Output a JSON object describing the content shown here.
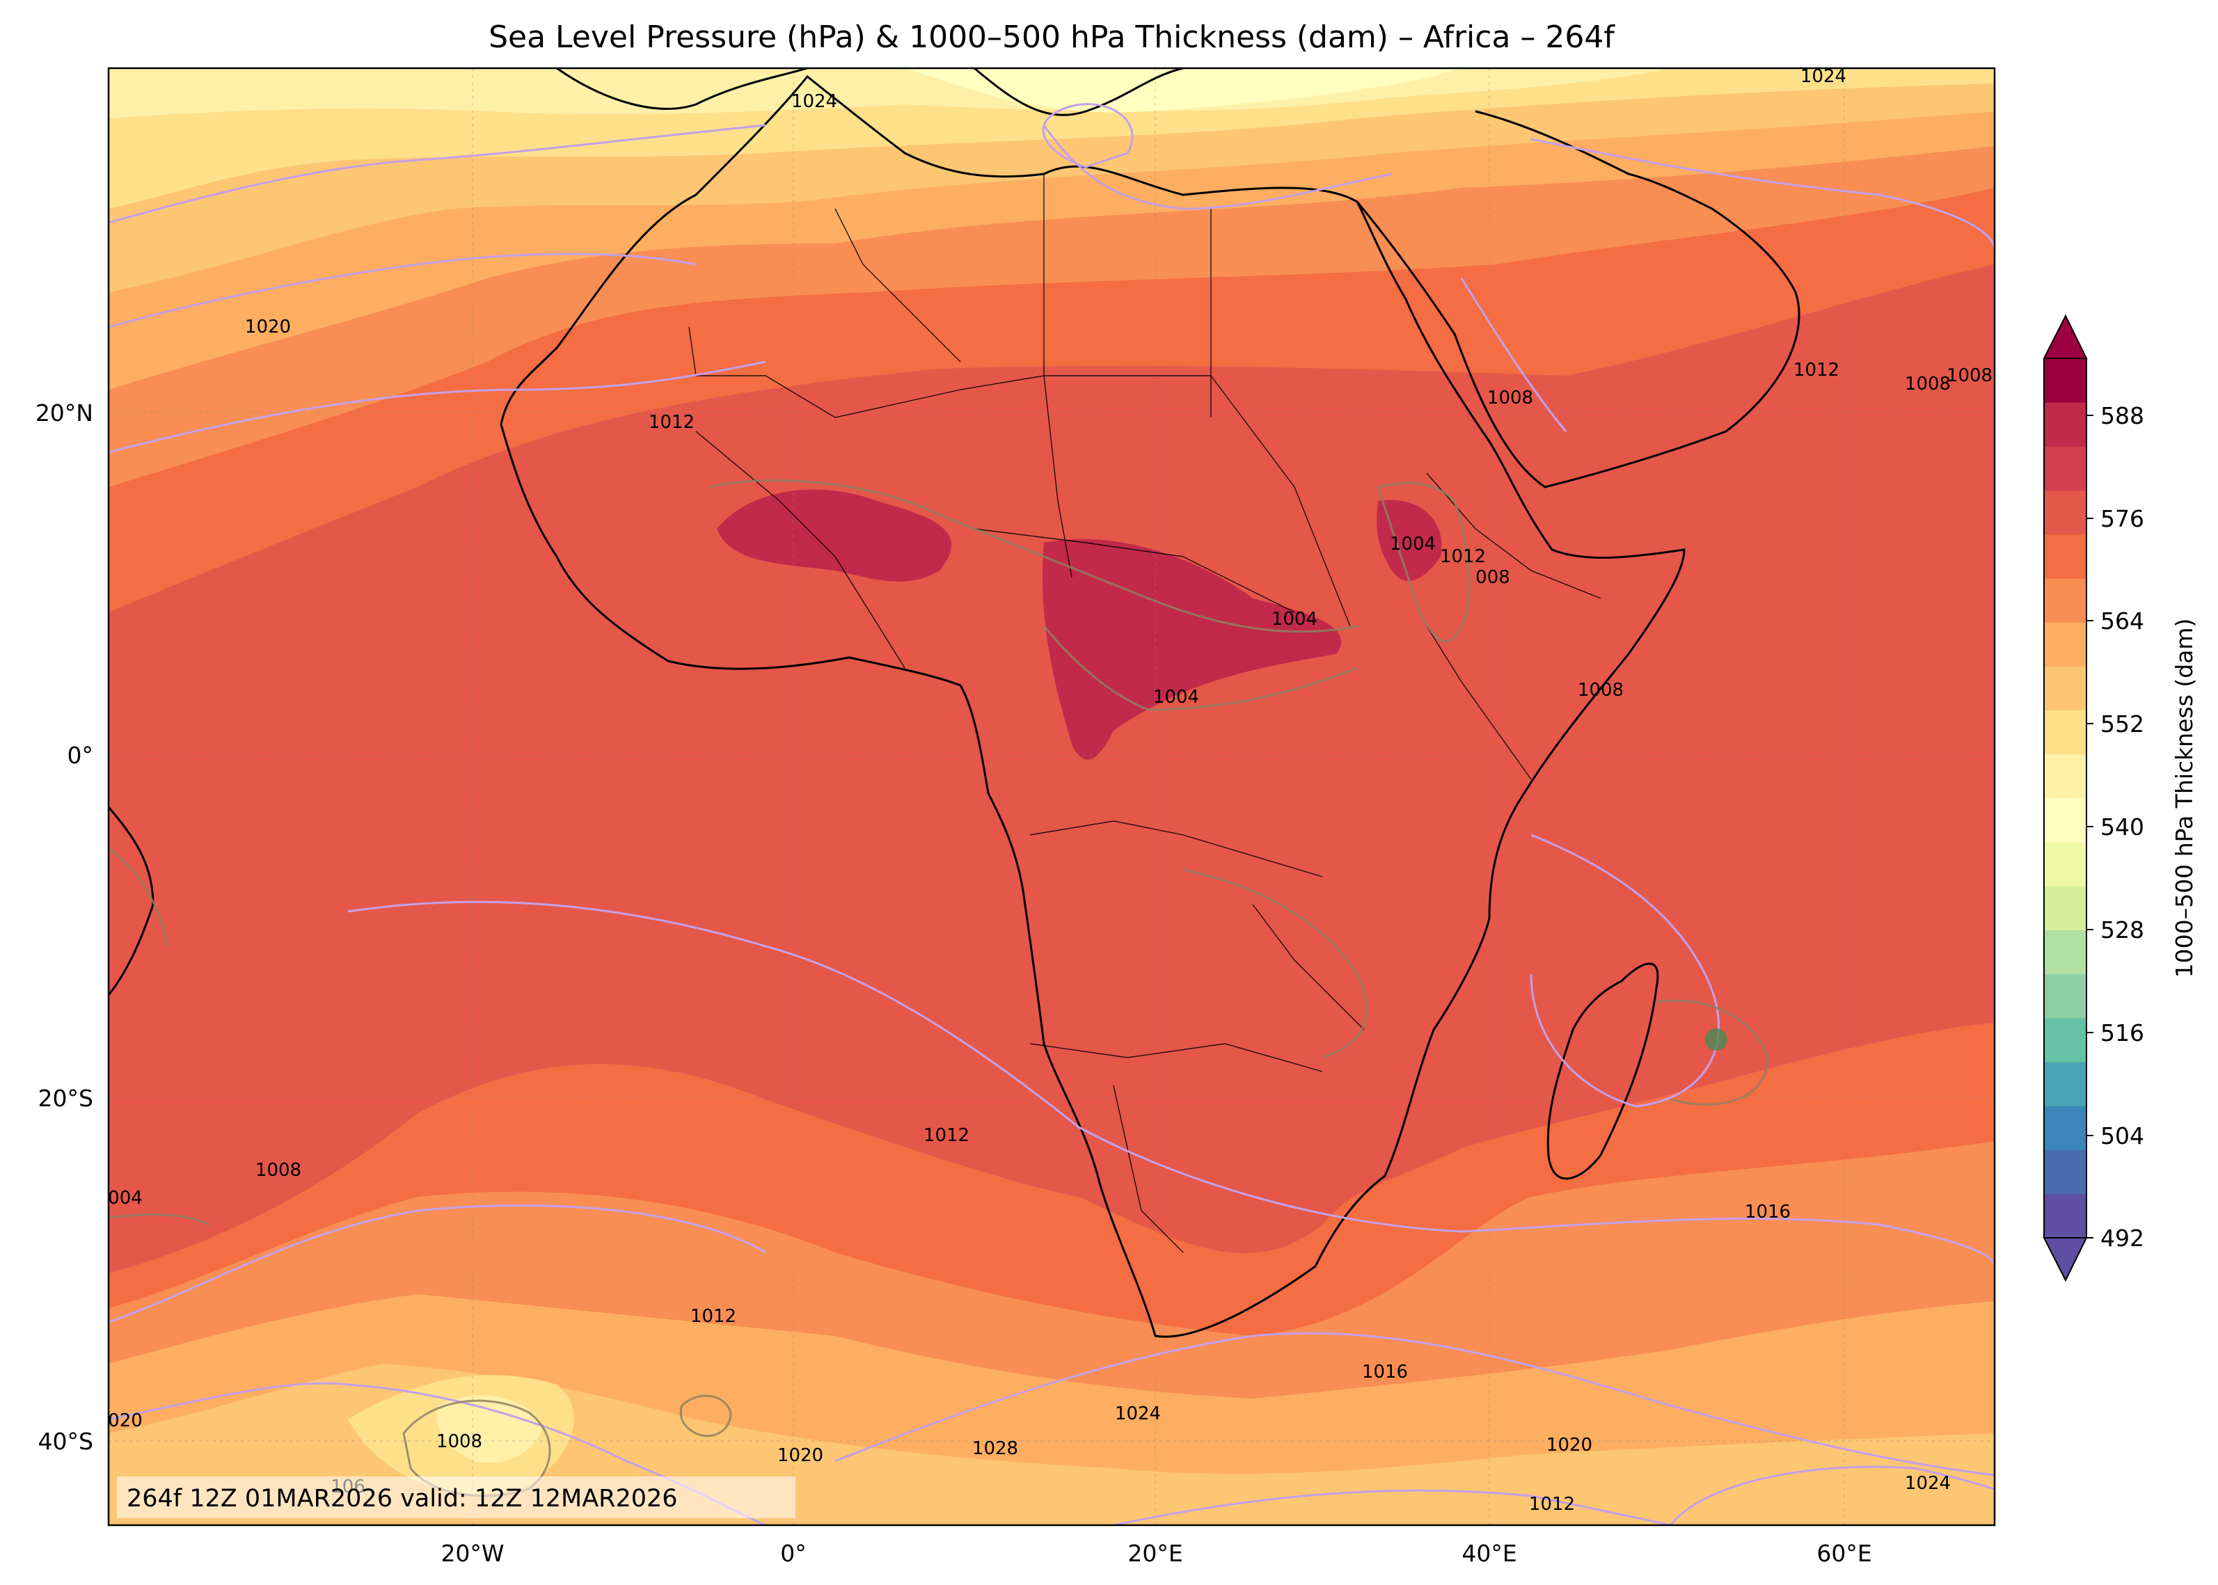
{
  "title": "Sea Level Pressure (hPa) & 1000–500 hPa Thickness (dam) – Africa – 264f",
  "footer": "264f 12Z 01MAR2026 valid: 12Z 12MAR2026",
  "axes": {
    "lat_labels": [
      "20°N",
      "0°",
      "20°S",
      "40°S"
    ],
    "lon_labels": [
      "20°W",
      "0°",
      "20°E",
      "40°E",
      "60°E"
    ]
  },
  "colorbar": {
    "label": "1000–500 hPa Thickness (dam)",
    "ticks": [
      "492",
      "504",
      "516",
      "528",
      "540",
      "552",
      "564",
      "576",
      "588"
    ],
    "colors": [
      "#5e4fa2",
      "#4a6cb0",
      "#3a86ba",
      "#4aa3b4",
      "#66c2a5",
      "#8ccfa4",
      "#b2e0a2",
      "#d5ee9b",
      "#eef8a6",
      "#ffffbf",
      "#fff0a8",
      "#fee08b",
      "#fdc673",
      "#fdae61",
      "#f88e53",
      "#f46d43",
      "#e55749",
      "#d53e4f",
      "#c2294a",
      "#9e0142"
    ]
  },
  "isobar_labels": {
    "p1024a": "1024",
    "p1020a": "1020",
    "p1012a": "1012",
    "p1008a": "1008",
    "p1012b": "1012",
    "p1008b": "1008",
    "p1004a": "1004",
    "p1012c": "1012",
    "p008": "008",
    "p1004b": "1004",
    "p1004c": "1004",
    "p1008c": "1008",
    "p1024b": "1024",
    "p1008d": "1008",
    "p004": "004",
    "p1008e": "1008",
    "p1012d": "1012",
    "p1012e": "1012",
    "p1016a": "1016",
    "p020": "020",
    "p1008f": "1008",
    "p106": "106",
    "p1020b": "1020",
    "p1028": "1028",
    "p1024c": "1024",
    "p1016b": "1016",
    "p1020c": "1020",
    "p1012f": "1012",
    "p1016c": "1016",
    "p1024d": "1024"
  }
}
